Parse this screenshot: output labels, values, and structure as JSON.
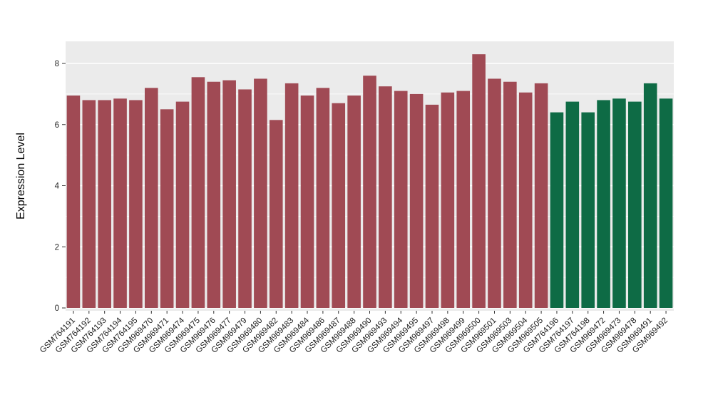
{
  "chart_data": {
    "type": "bar",
    "title": "",
    "xlabel": "",
    "ylabel": "Expression Level",
    "ylim": [
      0,
      8.68
    ],
    "yticks": [
      0,
      2,
      4,
      6,
      8
    ],
    "grid": true,
    "legend": "none",
    "panel_background": "#EBEBEB",
    "grid_color": "#FFFFFF",
    "palette": [
      "#A04A54",
      "#0E6B45"
    ],
    "categories": [
      "GSM764191",
      "GSM764192",
      "GSM764193",
      "GSM764194",
      "GSM764195",
      "GSM969470",
      "GSM969471",
      "GSM969474",
      "GSM969475",
      "GSM969476",
      "GSM969477",
      "GSM969479",
      "GSM969480",
      "GSM969482",
      "GSM969483",
      "GSM969484",
      "GSM969486",
      "GSM969487",
      "GSM969488",
      "GSM969490",
      "GSM969493",
      "GSM969494",
      "GSM969495",
      "GSM969497",
      "GSM969498",
      "GSM969499",
      "GSM969500",
      "GSM969501",
      "GSM969503",
      "GSM969504",
      "GSM969505",
      "GSM764196",
      "GSM764197",
      "GSM764198",
      "GSM969472",
      "GSM969473",
      "GSM969478",
      "GSM969491",
      "GSM969492"
    ],
    "values": [
      6.95,
      6.8,
      6.8,
      6.85,
      6.8,
      7.2,
      6.5,
      6.75,
      7.55,
      7.4,
      7.45,
      7.15,
      7.5,
      6.15,
      7.35,
      6.95,
      7.2,
      6.7,
      6.95,
      7.6,
      7.25,
      7.1,
      7.0,
      6.65,
      7.05,
      7.1,
      8.3,
      7.5,
      7.4,
      7.05,
      7.35,
      6.4,
      6.75,
      6.4,
      6.8,
      6.85,
      6.75,
      7.35,
      6.85
    ],
    "bar_groups": [
      0,
      0,
      0,
      0,
      0,
      0,
      0,
      0,
      0,
      0,
      0,
      0,
      0,
      0,
      0,
      0,
      0,
      0,
      0,
      0,
      0,
      0,
      0,
      0,
      0,
      0,
      0,
      0,
      0,
      0,
      0,
      1,
      1,
      1,
      1,
      1,
      1,
      1,
      1
    ]
  }
}
